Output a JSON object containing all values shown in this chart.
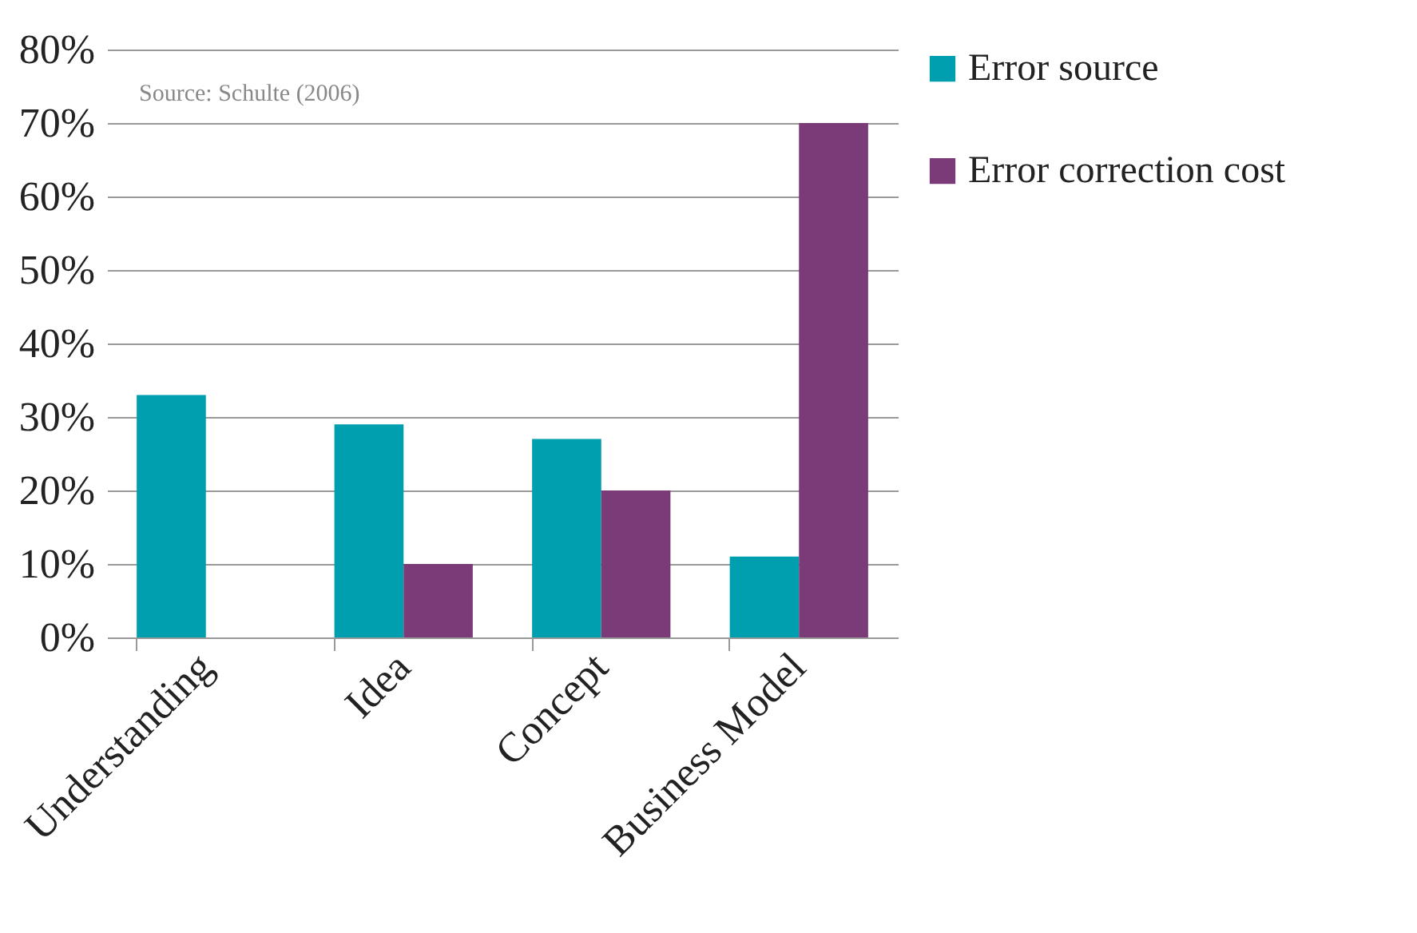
{
  "chart_data": {
    "type": "bar",
    "categories": [
      "Understanding",
      "Idea",
      "Concept",
      "Business Model"
    ],
    "series": [
      {
        "name": "Error source",
        "color": "#009faf",
        "values": [
          33,
          29,
          27,
          11
        ]
      },
      {
        "name": "Error correction cost",
        "color": "#7a3b78",
        "values": [
          null,
          10,
          20,
          70
        ]
      }
    ],
    "ylim": [
      0,
      80
    ],
    "yticks": [
      {
        "value": 0,
        "label": "0%"
      },
      {
        "value": 10,
        "label": "10%"
      },
      {
        "value": 20,
        "label": "20%"
      },
      {
        "value": 30,
        "label": "30%"
      },
      {
        "value": 40,
        "label": "40%"
      },
      {
        "value": 50,
        "label": "50%"
      },
      {
        "value": 60,
        "label": "60%"
      },
      {
        "value": 70,
        "label": "70%"
      },
      {
        "value": 80,
        "label": "80%"
      }
    ],
    "grid": "y",
    "legend": "right",
    "annotations": [
      "Source: Schulte (2006)"
    ]
  }
}
